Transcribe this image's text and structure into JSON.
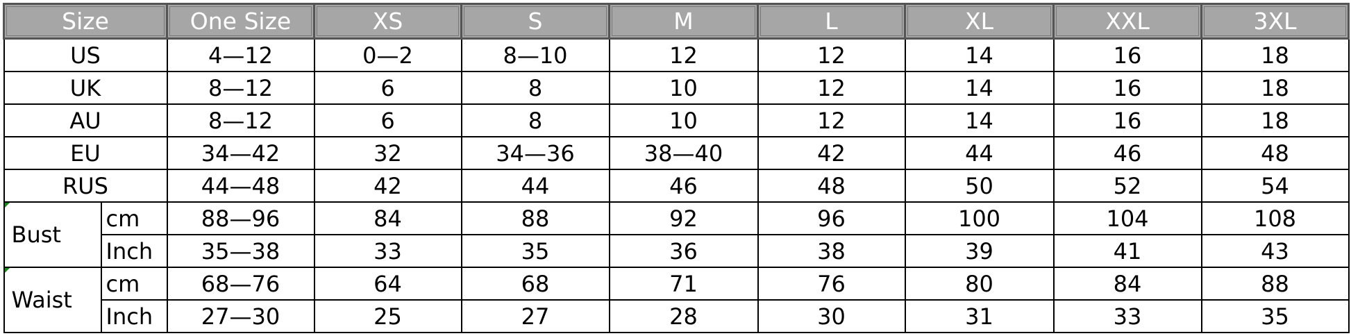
{
  "header": [
    "Size",
    "One  Size",
    "XS",
    "S",
    "M",
    "L",
    "XL",
    "XXL",
    "3XL"
  ],
  "rows": [
    {
      "label": "US",
      "values": [
        "4—12",
        "0—2",
        "8—10",
        "12",
        "12",
        "14",
        "16",
        "18"
      ]
    },
    {
      "label": "UK",
      "values": [
        "8—12",
        "6",
        "8",
        "10",
        "12",
        "14",
        "16",
        "18"
      ]
    },
    {
      "label": "AU",
      "values": [
        "8—12",
        "6",
        "8",
        "10",
        "12",
        "14",
        "16",
        "18"
      ]
    },
    {
      "label": "EU",
      "values": [
        "34—42",
        "32",
        "34—36",
        "38—40",
        "42",
        "44",
        "46",
        "48"
      ]
    },
    {
      "label": "RUS",
      "values": [
        "44—48",
        "42",
        "44",
        "46",
        "48",
        "50",
        "52",
        "54"
      ]
    }
  ],
  "measurements": [
    {
      "label": "Bust",
      "units": [
        {
          "unit": "cm",
          "values": [
            "88—96",
            "84",
            "88",
            "92",
            "96",
            "100",
            "104",
            "108"
          ]
        },
        {
          "unit": "Inch",
          "values": [
            "35—38",
            "33",
            "35",
            "36",
            "38",
            "39",
            "41",
            "43"
          ]
        }
      ]
    },
    {
      "label": "Waist",
      "units": [
        {
          "unit": "cm",
          "values": [
            "68—76",
            "64",
            "68",
            "71",
            "76",
            "80",
            "84",
            "88"
          ]
        },
        {
          "unit": "Inch",
          "values": [
            "27—30",
            "25",
            "27",
            "28",
            "30",
            "31",
            "33",
            "35"
          ]
        }
      ]
    }
  ],
  "colors": {
    "header_bg": "#a6a6a6",
    "header_text": "#ffffff",
    "cell_marker": "#1a8a1a"
  }
}
